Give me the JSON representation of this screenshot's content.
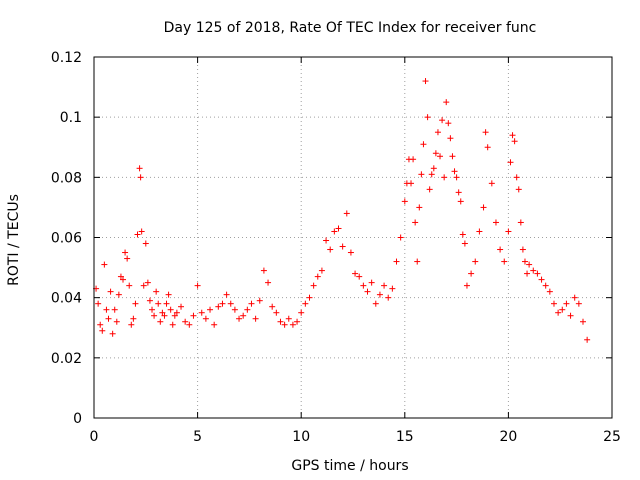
{
  "chart_data": {
    "type": "scatter",
    "title": "Day 125 of 2018, Rate Of TEC Index for receiver func",
    "xlabel": "GPS time / hours",
    "ylabel": "ROTI / TECUs",
    "xlim": [
      0,
      25
    ],
    "ylim": [
      0,
      0.12
    ],
    "x_ticks": [
      0,
      5,
      10,
      15,
      20,
      25
    ],
    "y_ticks": [
      0,
      0.02,
      0.04,
      0.06,
      0.08,
      0.1,
      0.12
    ],
    "x_tick_labels": [
      "0",
      "5",
      "10",
      "15",
      "20",
      "25"
    ],
    "y_tick_labels": [
      "0",
      "0.02",
      "0.04",
      "0.06",
      "0.08",
      "0.1",
      "0.12"
    ],
    "grid": true,
    "marker": "+",
    "color": "#ff0000",
    "series": [
      {
        "x": [
          0.1,
          0.2,
          0.3,
          0.4,
          0.5,
          0.6,
          0.7,
          0.8,
          0.9,
          1.0,
          1.1,
          1.2,
          1.3,
          1.4,
          1.5,
          1.6,
          1.7,
          1.8,
          1.9,
          2.0,
          2.1,
          2.2,
          2.25,
          2.3,
          2.4,
          2.5,
          2.6,
          2.7,
          2.8,
          2.9,
          3.0,
          3.1,
          3.2,
          3.3,
          3.4,
          3.5,
          3.6,
          3.7,
          3.8,
          3.9,
          4.0,
          4.2,
          4.4,
          4.6,
          4.8,
          5.0,
          5.2,
          5.4,
          5.6,
          5.8,
          6.0,
          6.2,
          6.4,
          6.6,
          6.8,
          7.0,
          7.2,
          7.4,
          7.6,
          7.8,
          8.0,
          8.2,
          8.4,
          8.6,
          8.8,
          9.0,
          9.2,
          9.4,
          9.6,
          9.8,
          10.0,
          10.2,
          10.4,
          10.6,
          10.8,
          11.0,
          11.2,
          11.4,
          11.6,
          11.8,
          12.0,
          12.2,
          12.4,
          12.6,
          12.8,
          13.0,
          13.2,
          13.4,
          13.6,
          13.8,
          14.0,
          14.2,
          14.4,
          14.6,
          14.8,
          15.0,
          15.1,
          15.2,
          15.3,
          15.4,
          15.5,
          15.6,
          15.7,
          15.8,
          15.9,
          16.0,
          16.1,
          16.2,
          16.3,
          16.4,
          16.5,
          16.6,
          16.7,
          16.8,
          16.9,
          17.0,
          17.1,
          17.2,
          17.3,
          17.4,
          17.5,
          17.6,
          17.7,
          17.8,
          17.9,
          18.0,
          18.2,
          18.4,
          18.6,
          18.8,
          18.9,
          19.0,
          19.2,
          19.4,
          19.6,
          19.8,
          20.0,
          20.1,
          20.2,
          20.3,
          20.4,
          20.5,
          20.6,
          20.7,
          20.8,
          20.9,
          21.0,
          21.2,
          21.4,
          21.6,
          21.8,
          22.0,
          22.2,
          22.4,
          22.6,
          22.8,
          23.0,
          23.2,
          23.4,
          23.6,
          23.8
        ],
        "y": [
          0.043,
          0.038,
          0.031,
          0.029,
          0.051,
          0.036,
          0.033,
          0.042,
          0.028,
          0.036,
          0.032,
          0.041,
          0.047,
          0.046,
          0.055,
          0.053,
          0.044,
          0.031,
          0.033,
          0.038,
          0.061,
          0.083,
          0.08,
          0.062,
          0.044,
          0.058,
          0.045,
          0.039,
          0.036,
          0.034,
          0.042,
          0.038,
          0.032,
          0.035,
          0.034,
          0.038,
          0.041,
          0.036,
          0.031,
          0.034,
          0.035,
          0.037,
          0.032,
          0.031,
          0.034,
          0.044,
          0.035,
          0.033,
          0.036,
          0.031,
          0.037,
          0.038,
          0.041,
          0.038,
          0.036,
          0.033,
          0.034,
          0.036,
          0.038,
          0.033,
          0.039,
          0.049,
          0.045,
          0.037,
          0.035,
          0.032,
          0.031,
          0.033,
          0.031,
          0.032,
          0.035,
          0.038,
          0.04,
          0.044,
          0.047,
          0.049,
          0.059,
          0.056,
          0.062,
          0.063,
          0.057,
          0.068,
          0.055,
          0.048,
          0.047,
          0.044,
          0.042,
          0.045,
          0.038,
          0.041,
          0.044,
          0.04,
          0.043,
          0.052,
          0.06,
          0.072,
          0.078,
          0.086,
          0.078,
          0.086,
          0.065,
          0.052,
          0.07,
          0.081,
          0.091,
          0.112,
          0.1,
          0.076,
          0.081,
          0.083,
          0.088,
          0.095,
          0.087,
          0.099,
          0.08,
          0.105,
          0.098,
          0.093,
          0.087,
          0.082,
          0.08,
          0.075,
          0.072,
          0.061,
          0.058,
          0.044,
          0.048,
          0.052,
          0.062,
          0.07,
          0.095,
          0.09,
          0.078,
          0.065,
          0.056,
          0.052,
          0.062,
          0.085,
          0.094,
          0.092,
          0.08,
          0.076,
          0.065,
          0.056,
          0.052,
          0.048,
          0.051,
          0.049,
          0.048,
          0.046,
          0.044,
          0.042,
          0.038,
          0.035,
          0.036,
          0.038,
          0.034,
          0.04,
          0.038,
          0.032,
          0.026
        ]
      }
    ]
  }
}
